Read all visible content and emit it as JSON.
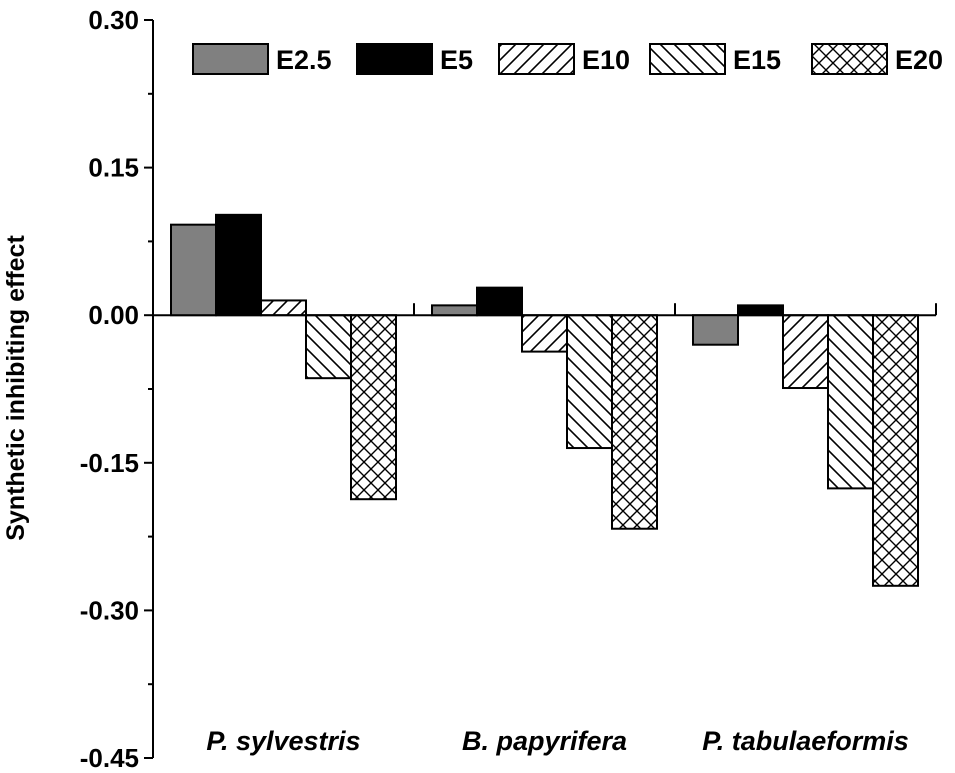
{
  "chart_data": {
    "type": "bar",
    "title": "",
    "xlabel": "",
    "ylabel": "Synthetic inhibiting effect",
    "ylim": [
      -0.45,
      0.3
    ],
    "yticks": [
      "0.30",
      "0.15",
      "0.00",
      "-0.15",
      "-0.30",
      "-0.45"
    ],
    "ytick_values": [
      0.3,
      0.15,
      0.0,
      -0.15,
      -0.3,
      -0.45
    ],
    "categories": [
      "P. sylvestris",
      "B. papyrifera",
      "P. tabulaeformis"
    ],
    "legend_position": "top",
    "grid": false,
    "series": [
      {
        "name": "E2.5",
        "values": [
          0.092,
          0.01,
          -0.03
        ],
        "fill": "#808080",
        "pattern": "solid"
      },
      {
        "name": "E5",
        "values": [
          0.102,
          0.028,
          0.01
        ],
        "fill": "#000000",
        "pattern": "solid"
      },
      {
        "name": "E10",
        "values": [
          0.015,
          -0.037,
          -0.074
        ],
        "fill": "#ffffff",
        "pattern": "forward-diagonal"
      },
      {
        "name": "E15",
        "values": [
          -0.064,
          -0.135,
          -0.176
        ],
        "fill": "#ffffff",
        "pattern": "backward-diagonal"
      },
      {
        "name": "E20",
        "values": [
          -0.187,
          -0.217,
          -0.275
        ],
        "fill": "#ffffff",
        "pattern": "crosshatch"
      }
    ]
  }
}
